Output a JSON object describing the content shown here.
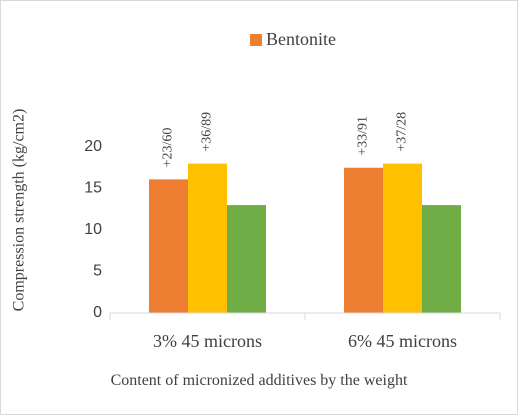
{
  "chart_data": {
    "type": "bar",
    "x_label": "Content of micronized additives by the weight",
    "y_label": "Compression strength (kg/cm2)",
    "categories": [
      "3% 45 microns",
      "6% 45 microns"
    ],
    "series": [
      {
        "name": "Bentonite",
        "color": "#ed7d31",
        "values": [
          16.1,
          17.5
        ],
        "annotations": [
          "+23/60",
          "+33/91"
        ]
      },
      {
        "color": "#ffc000",
        "values": [
          18,
          18
        ],
        "annotations": [
          "+36/89",
          "+37/28"
        ]
      },
      {
        "color": "#70ad47",
        "values": [
          13,
          13
        ]
      }
    ],
    "ylim": [
      0,
      20
    ],
    "yticks": [
      0,
      5,
      10,
      15,
      20
    ],
    "grid": false,
    "legend": "top"
  }
}
